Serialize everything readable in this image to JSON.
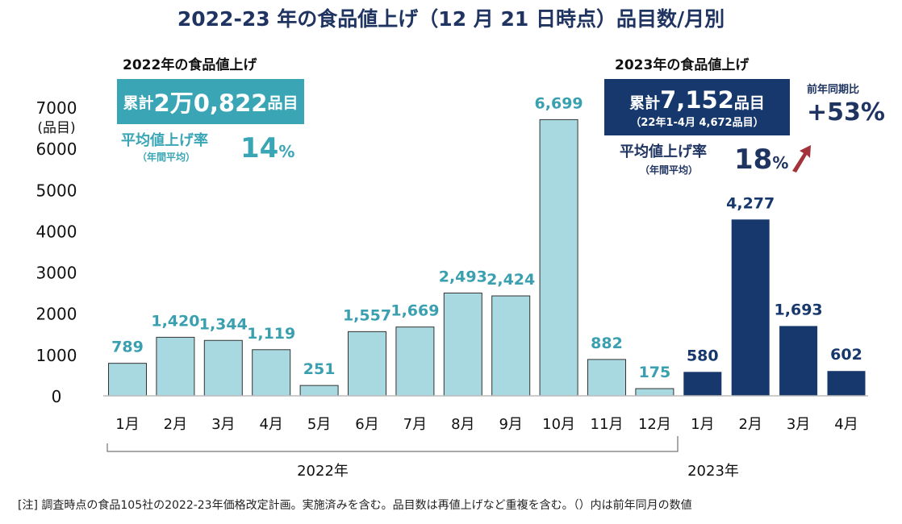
{
  "title": "2022-23 年の食品値上げ（12 月 21 日時点）品目数/月別",
  "summary_2022": {
    "heading": "2022年の食品値上げ",
    "total_prefix": "累計",
    "total_value": "2万0,822",
    "total_suffix": "品目",
    "rate_label": "平均値上げ率",
    "rate_sub": "（年間平均）",
    "rate_value": "14",
    "rate_unit": "%"
  },
  "summary_2023": {
    "heading": "2023年の食品値上げ",
    "total_prefix": "累計",
    "total_value": "7,152",
    "total_suffix": "品目",
    "total_note": "（22年1-4月 4,672品目）",
    "rate_label": "平均値上げ率",
    "rate_sub": "（年間平均）",
    "rate_value": "18",
    "rate_unit": "%",
    "yoy_label": "前年同期比",
    "yoy_value": "+53%",
    "arrow_icon": "up-arrow",
    "arrow_color": "#a3323a"
  },
  "note": "[注]  調査時点の食品105社の2022-23年価格改定計画。実施済みを含む。品目数は再値上げなど重複を含む。（）内は前年同月の数値",
  "chart_data": {
    "type": "bar",
    "ylabel": "(品目)",
    "ylim": [
      0,
      7000
    ],
    "yticks": [
      0,
      1000,
      2000,
      3000,
      4000,
      5000,
      6000,
      7000
    ],
    "grid": false,
    "categories": [
      "1月",
      "2月",
      "3月",
      "4月",
      "5月",
      "6月",
      "7月",
      "8月",
      "9月",
      "10月",
      "11月",
      "12月",
      "1月",
      "2月",
      "3月",
      "4月"
    ],
    "values": [
      789,
      1420,
      1344,
      1119,
      251,
      1557,
      1669,
      2493,
      2424,
      6699,
      882,
      175,
      580,
      4277,
      1693,
      602
    ],
    "data_labels": [
      "789",
      "1,420",
      "1,344",
      "1,119",
      "251",
      "1,557",
      "1,669",
      "2,493",
      "2,424",
      "6,699",
      "882",
      "175",
      "580",
      "4,277",
      "1,693",
      "602"
    ],
    "groups": [
      {
        "label": "2022年",
        "color": "#a8d8e0",
        "label_color": "#3aa0b0"
      },
      {
        "label": "2023年",
        "color": "#17386d",
        "label_color": "#17386d"
      }
    ],
    "group_index": [
      0,
      0,
      0,
      0,
      0,
      0,
      0,
      0,
      0,
      0,
      0,
      0,
      1,
      1,
      1,
      1
    ]
  }
}
